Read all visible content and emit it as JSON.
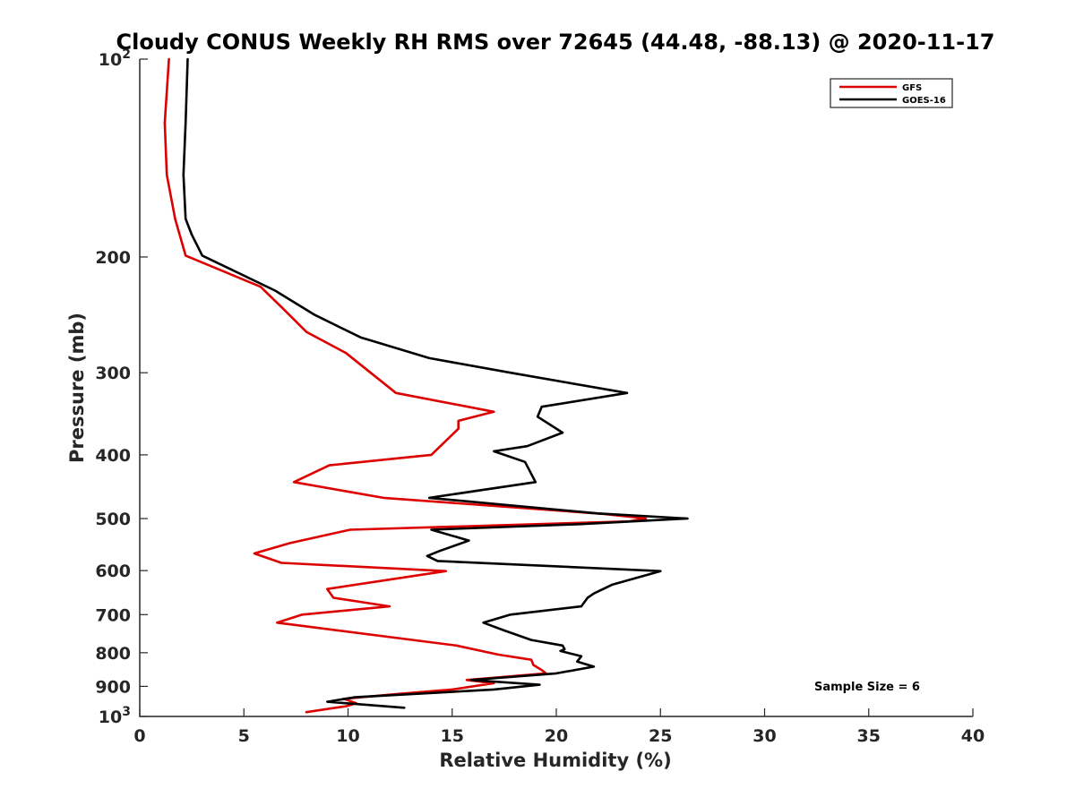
{
  "chart_data": {
    "type": "line",
    "title": "Cloudy CONUS Weekly RH RMS over 72645 (44.48, -88.13) @ 2020-11-17",
    "xlabel": "Relative Humidity (%)",
    "ylabel": "Pressure (mb)",
    "xlim": [
      0,
      40
    ],
    "ylim": [
      100,
      1000
    ],
    "y_scale": "log",
    "y_reversed": true,
    "x_ticks": [
      "0",
      "5",
      "10",
      "15",
      "20",
      "25",
      "30",
      "35",
      "40"
    ],
    "y_ticks": [
      {
        "value": 100,
        "label": "10",
        "sup": "2"
      },
      {
        "value": 200,
        "label": "200",
        "sup": ""
      },
      {
        "value": 300,
        "label": "300",
        "sup": ""
      },
      {
        "value": 400,
        "label": "400",
        "sup": ""
      },
      {
        "value": 500,
        "label": "500",
        "sup": ""
      },
      {
        "value": 600,
        "label": "600",
        "sup": ""
      },
      {
        "value": 700,
        "label": "700",
        "sup": ""
      },
      {
        "value": 800,
        "label": "800",
        "sup": ""
      },
      {
        "value": 900,
        "label": "900",
        "sup": ""
      },
      {
        "value": 1000,
        "label": "10",
        "sup": "3"
      }
    ],
    "legend_position": "top-right",
    "grid": false,
    "annotation": "Sample Size = 6",
    "series": [
      {
        "name": "GFS",
        "color": "#dd0000",
        "points": [
          [
            1.4,
            100
          ],
          [
            1.2,
            125
          ],
          [
            1.3,
            150
          ],
          [
            1.7,
            175
          ],
          [
            2.2,
            199
          ],
          [
            5.8,
            222
          ],
          [
            6.9,
            240
          ],
          [
            8.0,
            260
          ],
          [
            9.9,
            280
          ],
          [
            12.3,
            322
          ],
          [
            17.0,
            344
          ],
          [
            15.3,
            355
          ],
          [
            15.3,
            365
          ],
          [
            14.0,
            400
          ],
          [
            9.1,
            415
          ],
          [
            7.4,
            440
          ],
          [
            11.7,
            465
          ],
          [
            22.3,
            492
          ],
          [
            24.3,
            500
          ],
          [
            23.5,
            505
          ],
          [
            10.1,
            520
          ],
          [
            7.2,
            545
          ],
          [
            5.5,
            565
          ],
          [
            6.8,
            584
          ],
          [
            14.7,
            601
          ],
          [
            9.0,
            640
          ],
          [
            9.3,
            660
          ],
          [
            12.0,
            680
          ],
          [
            7.8,
            700
          ],
          [
            6.6,
            720
          ],
          [
            15.2,
            780
          ],
          [
            17.2,
            805
          ],
          [
            18.8,
            820
          ],
          [
            18.9,
            835
          ],
          [
            19.3,
            850
          ],
          [
            19.5,
            860
          ],
          [
            15.7,
            880
          ],
          [
            17.0,
            890
          ],
          [
            15.0,
            910
          ],
          [
            12.3,
            925
          ],
          [
            9.8,
            940
          ],
          [
            10.4,
            955
          ],
          [
            9.9,
            965
          ],
          [
            8.0,
            985
          ]
        ]
      },
      {
        "name": "GOES-16",
        "color": "#000000",
        "points": [
          [
            2.3,
            100
          ],
          [
            2.2,
            125
          ],
          [
            2.1,
            150
          ],
          [
            2.2,
            175
          ],
          [
            2.5,
            185
          ],
          [
            3.0,
            199
          ],
          [
            6.5,
            225
          ],
          [
            8.4,
            245
          ],
          [
            10.6,
            265
          ],
          [
            13.9,
            285
          ],
          [
            17.8,
            300
          ],
          [
            23.4,
            322
          ],
          [
            19.3,
            338
          ],
          [
            19.1,
            350
          ],
          [
            20.3,
            370
          ],
          [
            18.6,
            388
          ],
          [
            17.0,
            395
          ],
          [
            18.5,
            410
          ],
          [
            19.0,
            440
          ],
          [
            13.9,
            465
          ],
          [
            22.0,
            491
          ],
          [
            26.3,
            500
          ],
          [
            21.0,
            510
          ],
          [
            14.0,
            520
          ],
          [
            15.8,
            540
          ],
          [
            14.4,
            560
          ],
          [
            13.8,
            570
          ],
          [
            14.3,
            580
          ],
          [
            25.0,
            601
          ],
          [
            22.7,
            630
          ],
          [
            21.8,
            650
          ],
          [
            21.5,
            660
          ],
          [
            21.2,
            680
          ],
          [
            17.8,
            700
          ],
          [
            16.5,
            720
          ],
          [
            17.5,
            740
          ],
          [
            18.8,
            765
          ],
          [
            20.3,
            780
          ],
          [
            20.4,
            790
          ],
          [
            20.2,
            795
          ],
          [
            21.2,
            810
          ],
          [
            21.0,
            825
          ],
          [
            21.8,
            840
          ],
          [
            20.0,
            860
          ],
          [
            15.9,
            880
          ],
          [
            19.2,
            895
          ],
          [
            17.0,
            910
          ],
          [
            10.3,
            935
          ],
          [
            9.0,
            950
          ],
          [
            12.7,
            970
          ]
        ]
      }
    ]
  }
}
